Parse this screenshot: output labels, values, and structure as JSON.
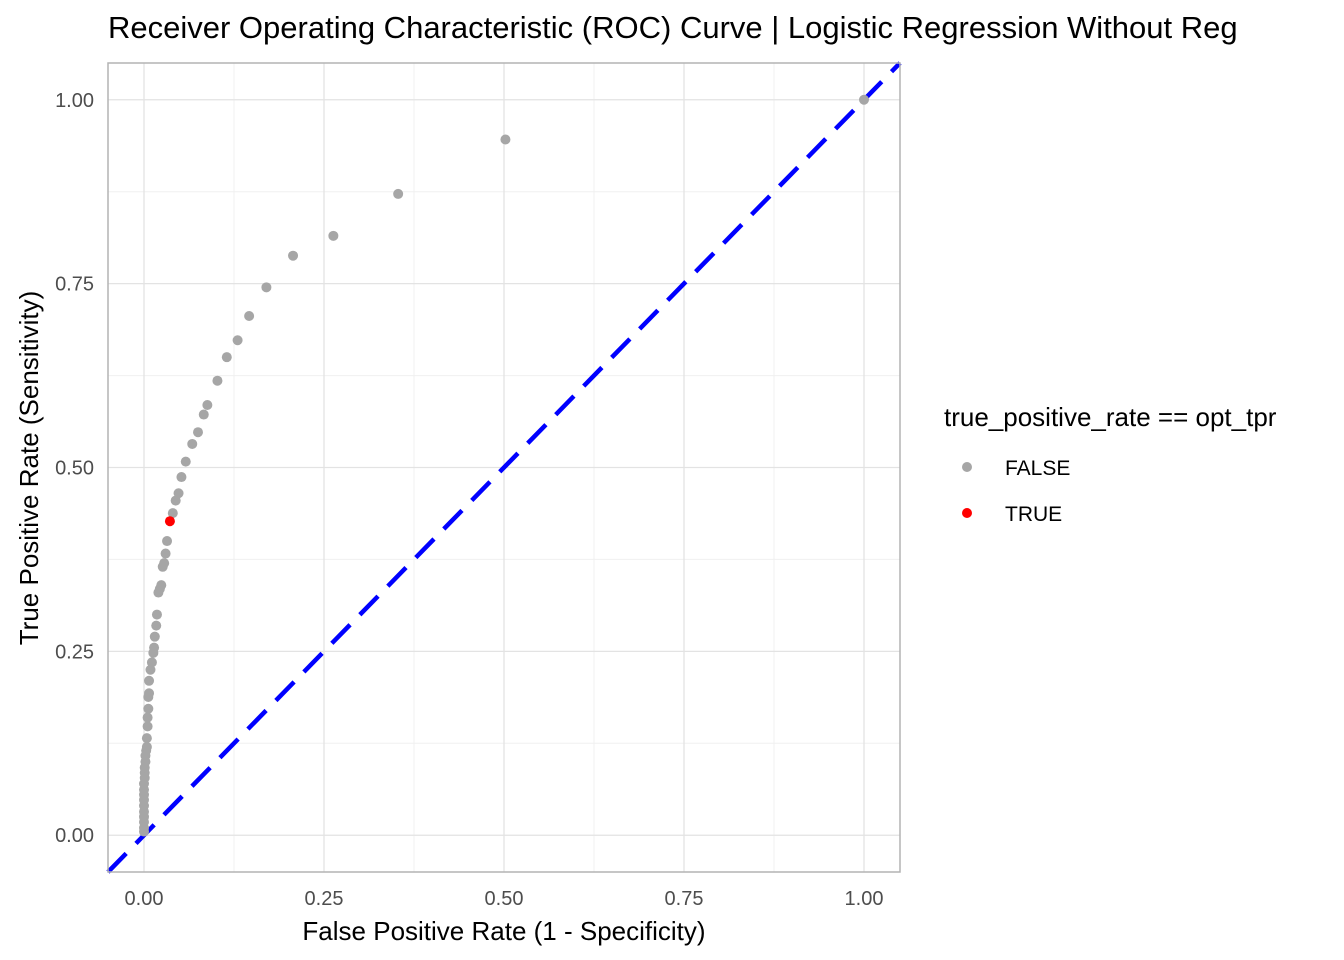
{
  "chart_data": {
    "type": "scatter",
    "title": "Receiver Operating Characteristic (ROC) Curve | Logistic Regression Without Reg",
    "xlabel": "False Positive Rate (1 - Specificity)",
    "ylabel": "True Positive Rate (Sensitivity)",
    "xlim": [
      -0.05,
      1.05
    ],
    "ylim": [
      -0.05,
      1.05
    ],
    "x_ticks": [
      "0.00",
      "0.25",
      "0.50",
      "0.75",
      "1.00"
    ],
    "y_ticks": [
      "0.00",
      "0.25",
      "0.50",
      "0.75",
      "1.00"
    ],
    "grid": true,
    "legend": {
      "title": "true_positive_rate == opt_tpr",
      "position": "right",
      "entries": [
        {
          "label": "FALSE",
          "color": "#a6a6a6"
        },
        {
          "label": "TRUE",
          "color": "#ff0000"
        }
      ]
    },
    "reference_line": {
      "type": "diagonal",
      "slope": 1,
      "intercept": 0,
      "style": "dashed",
      "color": "#0000ff"
    },
    "series": [
      {
        "name": "FALSE",
        "color": "#a6a6a6",
        "points": [
          [
            0.0,
            0.005
          ],
          [
            0.0,
            0.01
          ],
          [
            0.0,
            0.018
          ],
          [
            0.0,
            0.025
          ],
          [
            0.0,
            0.032
          ],
          [
            0.0,
            0.04
          ],
          [
            0.0,
            0.048
          ],
          [
            0.0,
            0.055
          ],
          [
            0.0,
            0.062
          ],
          [
            0.0,
            0.07
          ],
          [
            0.001,
            0.078
          ],
          [
            0.001,
            0.085
          ],
          [
            0.001,
            0.092
          ],
          [
            0.002,
            0.1
          ],
          [
            0.002,
            0.108
          ],
          [
            0.003,
            0.115
          ],
          [
            0.004,
            0.12
          ],
          [
            0.004,
            0.132
          ],
          [
            0.005,
            0.148
          ],
          [
            0.005,
            0.16
          ],
          [
            0.006,
            0.172
          ],
          [
            0.006,
            0.188
          ],
          [
            0.007,
            0.193
          ],
          [
            0.007,
            0.21
          ],
          [
            0.009,
            0.225
          ],
          [
            0.011,
            0.235
          ],
          [
            0.013,
            0.248
          ],
          [
            0.014,
            0.255
          ],
          [
            0.015,
            0.27
          ],
          [
            0.017,
            0.285
          ],
          [
            0.018,
            0.3
          ],
          [
            0.02,
            0.33
          ],
          [
            0.022,
            0.335
          ],
          [
            0.024,
            0.34
          ],
          [
            0.026,
            0.365
          ],
          [
            0.028,
            0.37
          ],
          [
            0.03,
            0.383
          ],
          [
            0.032,
            0.4
          ],
          [
            0.04,
            0.438
          ],
          [
            0.044,
            0.455
          ],
          [
            0.048,
            0.465
          ],
          [
            0.052,
            0.487
          ],
          [
            0.058,
            0.508
          ],
          [
            0.067,
            0.532
          ],
          [
            0.075,
            0.548
          ],
          [
            0.083,
            0.572
          ],
          [
            0.088,
            0.585
          ],
          [
            0.102,
            0.618
          ],
          [
            0.115,
            0.65
          ],
          [
            0.13,
            0.673
          ],
          [
            0.146,
            0.706
          ],
          [
            0.17,
            0.745
          ],
          [
            0.207,
            0.788
          ],
          [
            0.263,
            0.815
          ],
          [
            0.353,
            0.872
          ],
          [
            0.502,
            0.946
          ],
          [
            1.0,
            1.0
          ]
        ]
      },
      {
        "name": "TRUE",
        "color": "#ff0000",
        "points": [
          [
            0.036,
            0.427
          ]
        ]
      }
    ]
  }
}
